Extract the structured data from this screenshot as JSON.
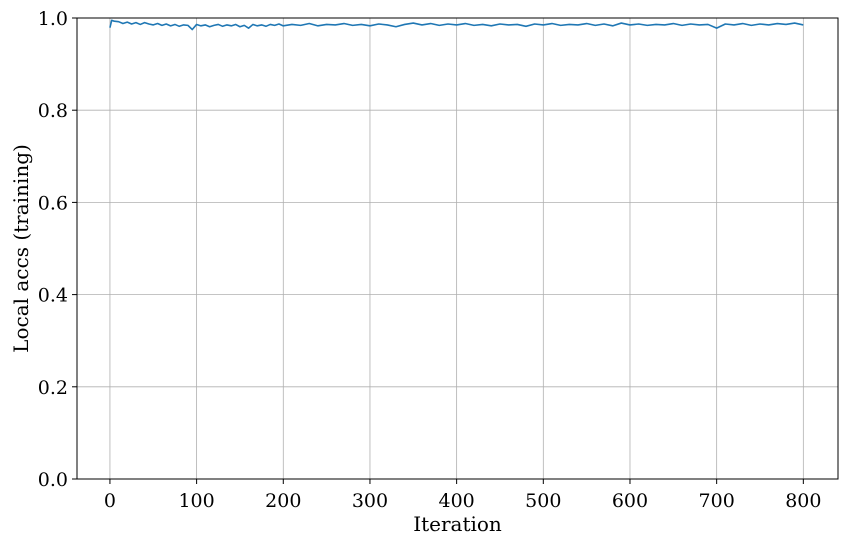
{
  "chart_data": {
    "type": "line",
    "title": "",
    "xlabel": "Iteration",
    "ylabel": "Local accs (training)",
    "xlim": [
      -38,
      840
    ],
    "ylim": [
      0.0,
      1.0
    ],
    "xticks": [
      0,
      100,
      200,
      300,
      400,
      500,
      600,
      700,
      800
    ],
    "xtick_labels": [
      "0",
      "100",
      "200",
      "300",
      "400",
      "500",
      "600",
      "700",
      "800"
    ],
    "yticks": [
      0.0,
      0.2,
      0.4,
      0.6,
      0.8,
      1.0
    ],
    "ytick_labels": [
      "0.0",
      "0.2",
      "0.4",
      "0.6",
      "0.8",
      "1.0"
    ],
    "grid": true,
    "legend": "none",
    "series": [
      {
        "color": "#1f77b4",
        "x": [
          0,
          2,
          5,
          10,
          15,
          20,
          25,
          30,
          35,
          40,
          45,
          50,
          55,
          60,
          65,
          70,
          75,
          80,
          85,
          90,
          95,
          100,
          105,
          110,
          115,
          120,
          125,
          130,
          135,
          140,
          145,
          150,
          155,
          160,
          165,
          170,
          175,
          180,
          185,
          190,
          195,
          200,
          210,
          220,
          230,
          240,
          250,
          260,
          270,
          280,
          290,
          300,
          310,
          320,
          330,
          340,
          350,
          360,
          370,
          380,
          390,
          400,
          410,
          420,
          430,
          440,
          450,
          460,
          470,
          480,
          490,
          500,
          510,
          520,
          530,
          540,
          550,
          560,
          570,
          580,
          590,
          600,
          610,
          620,
          630,
          640,
          650,
          660,
          670,
          680,
          690,
          700,
          710,
          720,
          730,
          740,
          750,
          760,
          770,
          780,
          790,
          800
        ],
        "y": [
          0.979,
          0.995,
          0.993,
          0.992,
          0.988,
          0.991,
          0.987,
          0.99,
          0.986,
          0.99,
          0.987,
          0.985,
          0.988,
          0.984,
          0.987,
          0.983,
          0.986,
          0.982,
          0.985,
          0.984,
          0.975,
          0.986,
          0.983,
          0.985,
          0.981,
          0.984,
          0.986,
          0.982,
          0.985,
          0.983,
          0.986,
          0.981,
          0.984,
          0.978,
          0.986,
          0.983,
          0.985,
          0.982,
          0.986,
          0.984,
          0.987,
          0.983,
          0.986,
          0.984,
          0.988,
          0.983,
          0.986,
          0.985,
          0.988,
          0.984,
          0.986,
          0.983,
          0.987,
          0.985,
          0.981,
          0.986,
          0.989,
          0.985,
          0.988,
          0.984,
          0.987,
          0.985,
          0.988,
          0.984,
          0.986,
          0.983,
          0.987,
          0.985,
          0.986,
          0.982,
          0.987,
          0.985,
          0.988,
          0.984,
          0.986,
          0.985,
          0.988,
          0.984,
          0.987,
          0.983,
          0.989,
          0.985,
          0.987,
          0.984,
          0.986,
          0.985,
          0.988,
          0.984,
          0.987,
          0.985,
          0.986,
          0.978,
          0.987,
          0.985,
          0.988,
          0.984,
          0.987,
          0.985,
          0.988,
          0.986,
          0.989,
          0.985
        ]
      }
    ]
  }
}
